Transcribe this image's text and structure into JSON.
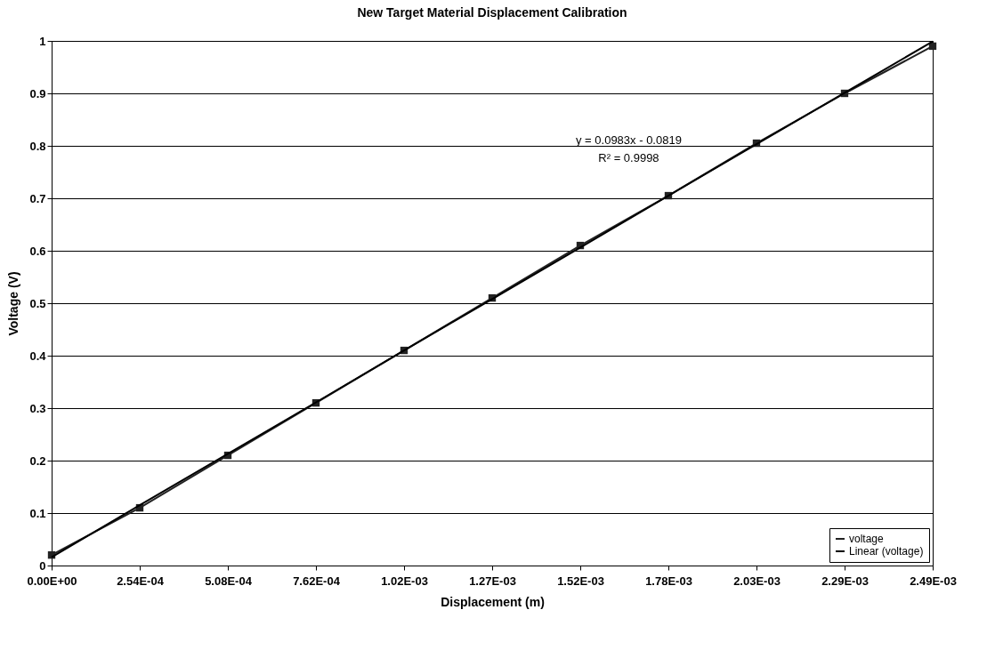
{
  "chart_data": {
    "type": "line",
    "title": "New Target Material Displacement Calibration",
    "xlabel": "Displacement (m)",
    "ylabel": "Voltage (V)",
    "categories": [
      "0.00E+00",
      "2.54E-04",
      "5.08E-04",
      "7.62E-04",
      "1.02E-03",
      "1.27E-03",
      "1.52E-03",
      "1.78E-03",
      "2.03E-03",
      "2.29E-03",
      "2.49E-03"
    ],
    "series": [
      {
        "name": "voltage",
        "color": "#222222",
        "marker": "square",
        "values": [
          0.02,
          0.11,
          0.21,
          0.31,
          0.41,
          0.51,
          0.61,
          0.705,
          0.805,
          0.9,
          0.99
        ]
      },
      {
        "name": "Linear (voltage)",
        "color": "#000000",
        "marker": "none",
        "values": [
          0.016,
          0.115,
          0.213,
          0.311,
          0.41,
          0.508,
          0.606,
          0.705,
          0.803,
          0.901,
          0.999
        ]
      }
    ],
    "ylim": [
      0,
      1
    ],
    "yticks": [
      0,
      0.1,
      0.2,
      0.3,
      0.4,
      0.5,
      0.6,
      0.7,
      0.8,
      0.9,
      1
    ],
    "grid": "y",
    "legend": "bottom right",
    "annotations": [
      "y = 0.0983x - 0.0819",
      "R² = 0.9998"
    ]
  }
}
